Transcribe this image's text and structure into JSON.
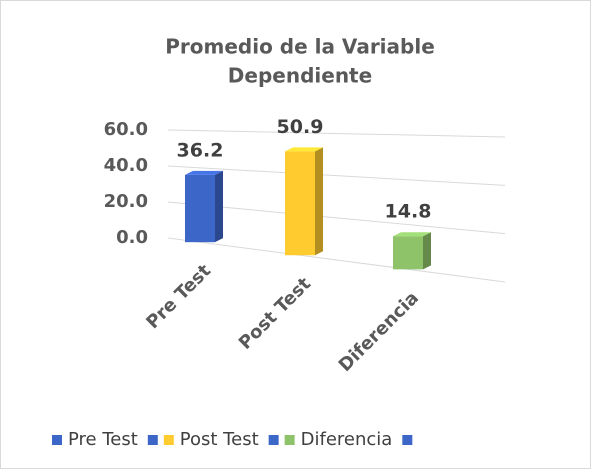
{
  "chart_data": {
    "type": "bar3d",
    "title": [
      "Promedio  de la Variable",
      "Dependiente"
    ],
    "categories": [
      "Pre Test",
      "Post Test",
      "Diferencia"
    ],
    "values": [
      36.2,
      50.9,
      14.8
    ],
    "colors": [
      "#3d66c9",
      "#ffcb2f",
      "#8fc36a"
    ],
    "ylim": [
      0,
      60
    ],
    "yticks": [
      {
        "value": 0,
        "label": "0.0"
      },
      {
        "value": 20,
        "label": "20.0"
      },
      {
        "value": 40,
        "label": "40.0"
      },
      {
        "value": 60,
        "label": "60.0"
      }
    ],
    "grid": true,
    "legend": "bottom"
  }
}
